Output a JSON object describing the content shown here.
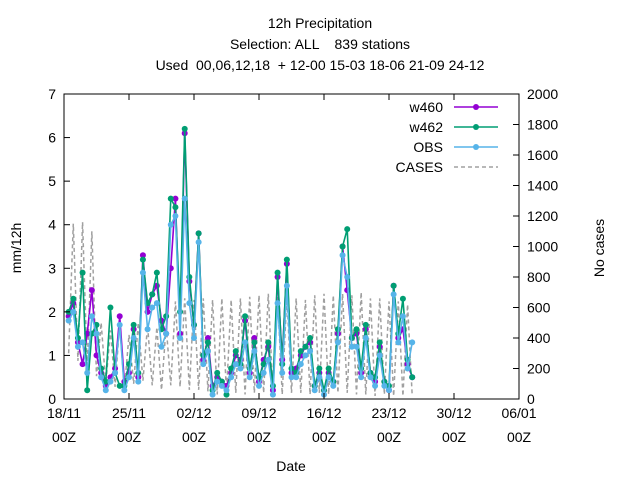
{
  "chart_data": {
    "type": "line",
    "title": [
      "12h Precipitation",
      "Selection: ALL    839 stations",
      "Used  00,06,12,18  + 12-00 15-03 18-06 21-09 24-12"
    ],
    "xlabel": "Date",
    "ylabel": "mm/12h",
    "y2label": "No cases",
    "x_ticks": [
      {
        "line1": "18/11",
        "line2": "00Z"
      },
      {
        "line1": "25/11",
        "line2": "00Z"
      },
      {
        "line1": "02/12",
        "line2": "00Z"
      },
      {
        "line1": "09/12",
        "line2": "00Z"
      },
      {
        "line1": "16/12",
        "line2": "00Z"
      },
      {
        "line1": "23/12",
        "line2": "00Z"
      },
      {
        "line1": "30/12",
        "line2": "00Z"
      },
      {
        "line1": "06/01",
        "line2": "00Z"
      }
    ],
    "x_range_days": [
      0,
      49
    ],
    "ylim": [
      0,
      7
    ],
    "y_ticks": [
      0,
      1,
      2,
      3,
      4,
      5,
      6,
      7
    ],
    "y2lim": [
      0,
      2000
    ],
    "y2_ticks": [
      0,
      200,
      400,
      600,
      800,
      1000,
      1200,
      1400,
      1600,
      1800,
      2000
    ],
    "legend_position": "top-right",
    "colors": {
      "w460": "#9400d3",
      "w462": "#009e73",
      "OBS": "#56b4e9",
      "CASES": "#a0a0a0"
    },
    "series": [
      {
        "name": "w460",
        "axis": "left",
        "values": [
          [
            0.5,
            1.9
          ],
          [
            1.0,
            2.2
          ],
          [
            1.5,
            1.3
          ],
          [
            2.0,
            0.8
          ],
          [
            2.5,
            1.5
          ],
          [
            3.0,
            2.5
          ],
          [
            3.5,
            1.0
          ],
          [
            4.0,
            0.6
          ],
          [
            4.5,
            0.3
          ],
          [
            5.0,
            0.5
          ],
          [
            5.5,
            0.7
          ],
          [
            6.0,
            1.9
          ],
          [
            6.5,
            0.4
          ],
          [
            7.0,
            0.6
          ],
          [
            7.5,
            1.6
          ],
          [
            8.0,
            0.5
          ],
          [
            8.5,
            3.3
          ],
          [
            9.0,
            2.0
          ],
          [
            9.5,
            2.4
          ],
          [
            10.0,
            2.6
          ],
          [
            10.5,
            1.8
          ],
          [
            11.0,
            1.5
          ],
          [
            11.5,
            3.0
          ],
          [
            12.0,
            4.6
          ],
          [
            12.5,
            1.5
          ],
          [
            13.0,
            6.1
          ],
          [
            13.5,
            2.7
          ],
          [
            14.0,
            1.7
          ],
          [
            14.5,
            3.8
          ],
          [
            15.0,
            0.9
          ],
          [
            15.5,
            1.4
          ],
          [
            16.0,
            0.3
          ],
          [
            16.5,
            0.5
          ],
          [
            17.0,
            0.4
          ],
          [
            17.5,
            0.3
          ],
          [
            18.0,
            0.6
          ],
          [
            18.5,
            1.0
          ],
          [
            19.0,
            0.9
          ],
          [
            19.5,
            1.8
          ],
          [
            20.0,
            0.6
          ],
          [
            20.5,
            1.4
          ],
          [
            21.0,
            0.4
          ],
          [
            21.5,
            0.9
          ],
          [
            22.0,
            1.2
          ],
          [
            22.5,
            0.2
          ],
          [
            23.0,
            2.8
          ],
          [
            23.5,
            0.9
          ],
          [
            24.0,
            3.1
          ],
          [
            24.5,
            0.6
          ],
          [
            25.0,
            0.7
          ],
          [
            25.5,
            1.0
          ],
          [
            26.0,
            1.2
          ],
          [
            26.5,
            1.3
          ],
          [
            27.0,
            0.3
          ],
          [
            27.5,
            0.6
          ],
          [
            28.0,
            0.2
          ],
          [
            28.5,
            0.6
          ],
          [
            29.0,
            0.4
          ],
          [
            29.5,
            1.5
          ],
          [
            30.0,
            3.5
          ],
          [
            30.5,
            2.5
          ],
          [
            31.0,
            1.4
          ],
          [
            31.5,
            1.5
          ],
          [
            32.0,
            0.6
          ],
          [
            32.5,
            1.6
          ],
          [
            33.0,
            0.6
          ],
          [
            33.5,
            0.4
          ],
          [
            34.0,
            1.2
          ],
          [
            34.5,
            0.4
          ],
          [
            35.0,
            0.2
          ],
          [
            35.5,
            2.6
          ],
          [
            36.0,
            1.4
          ],
          [
            36.5,
            1.6
          ],
          [
            37.0,
            0.8
          ],
          [
            37.5,
            0.5
          ]
        ]
      },
      {
        "name": "w462",
        "axis": "left",
        "values": [
          [
            0.5,
            2.0
          ],
          [
            1.0,
            2.3
          ],
          [
            1.5,
            1.4
          ],
          [
            2.0,
            2.9
          ],
          [
            2.5,
            0.2
          ],
          [
            3.0,
            1.5
          ],
          [
            3.5,
            1.7
          ],
          [
            4.0,
            0.7
          ],
          [
            4.5,
            0.4
          ],
          [
            5.0,
            2.1
          ],
          [
            5.5,
            0.6
          ],
          [
            6.0,
            0.3
          ],
          [
            6.5,
            0.3
          ],
          [
            7.0,
            0.8
          ],
          [
            7.5,
            1.7
          ],
          [
            8.0,
            0.6
          ],
          [
            8.5,
            3.2
          ],
          [
            9.0,
            2.2
          ],
          [
            9.5,
            2.4
          ],
          [
            10.0,
            2.9
          ],
          [
            10.5,
            1.6
          ],
          [
            11.0,
            1.9
          ],
          [
            11.5,
            4.6
          ],
          [
            12.0,
            4.4
          ],
          [
            12.5,
            2.0
          ],
          [
            13.0,
            6.2
          ],
          [
            13.5,
            2.8
          ],
          [
            14.0,
            1.7
          ],
          [
            14.5,
            3.8
          ],
          [
            15.0,
            1.0
          ],
          [
            15.5,
            1.3
          ],
          [
            16.0,
            0.2
          ],
          [
            16.5,
            0.6
          ],
          [
            17.0,
            0.4
          ],
          [
            17.5,
            0.1
          ],
          [
            18.0,
            0.7
          ],
          [
            18.5,
            1.1
          ],
          [
            19.0,
            0.8
          ],
          [
            19.5,
            1.9
          ],
          [
            20.0,
            0.7
          ],
          [
            20.5,
            1.3
          ],
          [
            21.0,
            0.5
          ],
          [
            21.5,
            0.8
          ],
          [
            22.0,
            1.3
          ],
          [
            22.5,
            0.3
          ],
          [
            23.0,
            2.9
          ],
          [
            23.5,
            0.8
          ],
          [
            24.0,
            3.2
          ],
          [
            24.5,
            0.7
          ],
          [
            25.0,
            0.6
          ],
          [
            25.5,
            1.1
          ],
          [
            26.0,
            1.2
          ],
          [
            26.5,
            1.4
          ],
          [
            27.0,
            0.3
          ],
          [
            27.5,
            0.7
          ],
          [
            28.0,
            0.2
          ],
          [
            28.5,
            0.7
          ],
          [
            29.0,
            0.4
          ],
          [
            29.5,
            1.6
          ],
          [
            30.0,
            3.5
          ],
          [
            30.5,
            3.9
          ],
          [
            31.0,
            1.4
          ],
          [
            31.5,
            1.6
          ],
          [
            32.0,
            0.7
          ],
          [
            32.5,
            1.7
          ],
          [
            33.0,
            0.6
          ],
          [
            33.5,
            0.5
          ],
          [
            34.0,
            1.3
          ],
          [
            34.5,
            0.4
          ],
          [
            35.0,
            0.3
          ],
          [
            35.5,
            2.6
          ],
          [
            36.0,
            1.5
          ],
          [
            36.5,
            2.3
          ],
          [
            37.0,
            0.9
          ],
          [
            37.5,
            0.5
          ]
        ]
      },
      {
        "name": "OBS",
        "axis": "left",
        "values": [
          [
            0.5,
            1.8
          ],
          [
            1.0,
            2.0
          ],
          [
            1.5,
            1.2
          ],
          [
            2.0,
            1.3
          ],
          [
            2.5,
            0.6
          ],
          [
            3.0,
            1.9
          ],
          [
            3.5,
            1.5
          ],
          [
            4.0,
            0.5
          ],
          [
            4.5,
            0.2
          ],
          [
            5.0,
            0.4
          ],
          [
            5.5,
            0.6
          ],
          [
            6.0,
            1.7
          ],
          [
            6.5,
            0.2
          ],
          [
            7.0,
            0.5
          ],
          [
            7.5,
            1.4
          ],
          [
            8.0,
            0.4
          ],
          [
            8.5,
            2.9
          ],
          [
            9.0,
            1.6
          ],
          [
            9.5,
            2.1
          ],
          [
            10.0,
            2.2
          ],
          [
            10.5,
            1.2
          ],
          [
            11.0,
            1.5
          ],
          [
            11.5,
            4.0
          ],
          [
            12.0,
            4.2
          ],
          [
            12.5,
            1.4
          ],
          [
            13.0,
            4.6
          ],
          [
            13.5,
            2.2
          ],
          [
            14.0,
            1.4
          ],
          [
            14.5,
            3.6
          ],
          [
            15.0,
            0.8
          ],
          [
            15.5,
            1.1
          ],
          [
            16.0,
            0.1
          ],
          [
            16.5,
            0.4
          ],
          [
            17.0,
            0.3
          ],
          [
            17.5,
            0.2
          ],
          [
            18.0,
            0.5
          ],
          [
            18.5,
            0.8
          ],
          [
            19.0,
            0.7
          ],
          [
            19.5,
            1.3
          ],
          [
            20.0,
            0.5
          ],
          [
            20.5,
            1.1
          ],
          [
            21.0,
            0.3
          ],
          [
            21.5,
            0.6
          ],
          [
            22.0,
            0.9
          ],
          [
            22.5,
            0.1
          ],
          [
            23.0,
            2.2
          ],
          [
            23.5,
            0.6
          ],
          [
            24.0,
            2.6
          ],
          [
            24.5,
            0.5
          ],
          [
            25.0,
            0.5
          ],
          [
            25.5,
            0.8
          ],
          [
            26.0,
            1.0
          ],
          [
            26.5,
            1.1
          ],
          [
            27.0,
            0.2
          ],
          [
            27.5,
            0.5
          ],
          [
            28.0,
            0.1
          ],
          [
            28.5,
            0.5
          ],
          [
            29.0,
            0.3
          ],
          [
            29.5,
            1.3
          ],
          [
            30.0,
            3.3
          ],
          [
            30.5,
            2.8
          ],
          [
            31.0,
            1.2
          ],
          [
            31.5,
            1.2
          ],
          [
            32.0,
            0.5
          ],
          [
            32.5,
            1.4
          ],
          [
            33.0,
            0.5
          ],
          [
            33.5,
            0.3
          ],
          [
            34.0,
            1.0
          ],
          [
            34.5,
            0.3
          ],
          [
            35.0,
            0.2
          ],
          [
            35.5,
            2.4
          ],
          [
            36.0,
            1.3
          ],
          [
            36.5,
            1.9
          ],
          [
            37.0,
            0.7
          ],
          [
            37.5,
            1.3
          ]
        ]
      },
      {
        "name": "CASES",
        "axis": "right",
        "style": "dashed",
        "values": [
          [
            0.5,
            300
          ],
          [
            1.0,
            1150
          ],
          [
            1.5,
            250
          ],
          [
            2.0,
            1160
          ],
          [
            2.5,
            200
          ],
          [
            3.0,
            1100
          ],
          [
            3.5,
            150
          ],
          [
            4.0,
            500
          ],
          [
            4.5,
            100
          ],
          [
            5.0,
            450
          ],
          [
            5.5,
            80
          ],
          [
            6.0,
            500
          ],
          [
            6.5,
            60
          ],
          [
            7.0,
            420
          ],
          [
            7.5,
            100
          ],
          [
            8.0,
            500
          ],
          [
            8.5,
            120
          ],
          [
            9.0,
            480
          ],
          [
            9.5,
            90
          ],
          [
            10.0,
            470
          ],
          [
            10.5,
            60
          ],
          [
            11.0,
            480
          ],
          [
            11.5,
            90
          ],
          [
            12.0,
            640
          ],
          [
            12.5,
            80
          ],
          [
            13.0,
            660
          ],
          [
            13.5,
            60
          ],
          [
            14.0,
            650
          ],
          [
            14.5,
            60
          ],
          [
            15.0,
            660
          ],
          [
            15.5,
            50
          ],
          [
            16.0,
            650
          ],
          [
            16.5,
            30
          ],
          [
            17.0,
            660
          ],
          [
            17.5,
            40
          ],
          [
            18.0,
            650
          ],
          [
            18.5,
            40
          ],
          [
            19.0,
            660
          ],
          [
            19.5,
            30
          ],
          [
            20.0,
            670
          ],
          [
            20.5,
            40
          ],
          [
            21.0,
            680
          ],
          [
            21.5,
            40
          ],
          [
            22.0,
            690
          ],
          [
            22.5,
            40
          ],
          [
            23.0,
            670
          ],
          [
            23.5,
            30
          ],
          [
            24.0,
            680
          ],
          [
            24.5,
            40
          ],
          [
            25.0,
            660
          ],
          [
            25.5,
            40
          ],
          [
            26.0,
            650
          ],
          [
            26.5,
            30
          ],
          [
            27.0,
            680
          ],
          [
            27.5,
            40
          ],
          [
            28.0,
            690
          ],
          [
            28.5,
            30
          ],
          [
            29.0,
            680
          ],
          [
            29.5,
            40
          ],
          [
            30.0,
            690
          ],
          [
            30.5,
            40
          ],
          [
            31.0,
            680
          ],
          [
            31.5,
            30
          ],
          [
            32.0,
            700
          ],
          [
            32.5,
            30
          ],
          [
            33.0,
            660
          ],
          [
            33.5,
            20
          ],
          [
            34.0,
            660
          ],
          [
            34.5,
            30
          ],
          [
            35.0,
            640
          ],
          [
            35.5,
            20
          ],
          [
            36.0,
            640
          ],
          [
            36.5,
            20
          ],
          [
            37.0,
            620
          ],
          [
            37.5,
            20
          ]
        ]
      }
    ]
  }
}
